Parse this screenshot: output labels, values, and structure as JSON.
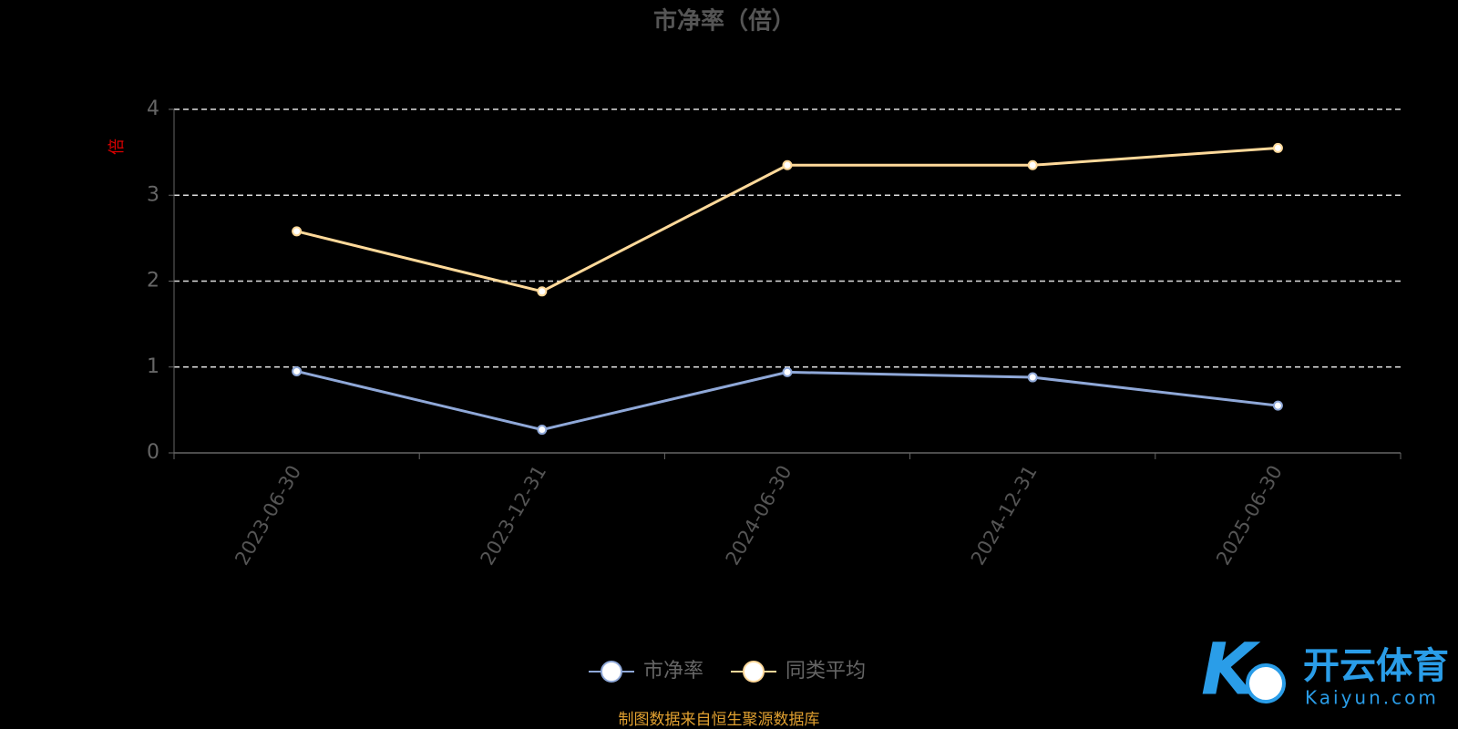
{
  "chart_data": {
    "type": "line",
    "title": "市净率（倍）",
    "y_label": "倍",
    "categories": [
      "2023-06-30",
      "2023-12-31",
      "2024-06-30",
      "2024-12-31",
      "2025-06-30"
    ],
    "series": [
      {
        "name": "市净率",
        "color": "#8fa8d8",
        "values": [
          0.95,
          0.27,
          0.94,
          0.88,
          0.55
        ]
      },
      {
        "name": "同类平均",
        "color": "#ffd99a",
        "values": [
          2.58,
          1.88,
          3.35,
          3.35,
          3.55
        ]
      }
    ],
    "ylim": [
      0,
      4
    ],
    "yticks": [
      0,
      1,
      2,
      3,
      4
    ],
    "grid": true,
    "legend": "bottom",
    "source": "制图数据来自恒生聚源数据库",
    "watermark": {
      "brand": "开云体育",
      "site": "Kaiyun.com"
    }
  }
}
